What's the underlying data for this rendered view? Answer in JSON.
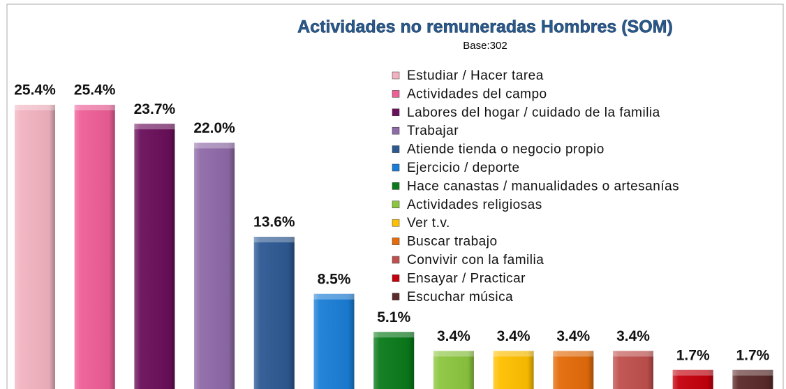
{
  "chart_data": {
    "type": "bar",
    "title": "Actividades no remuneradas Hombres (SOM)",
    "subtitle": "Base:302",
    "categories": [
      "Estudiar / Hacer tarea",
      "Actividades del campo",
      "Labores del hogar / cuidado de la familia",
      "Trabajar",
      "Atiende tienda o negocio propio",
      "Ejercicio / deporte",
      "Hace canastas / manualidades  o artesanías",
      "Actividades religiosas",
      "Ver t.v.",
      "Buscar trabajo",
      "Convivir con la familia",
      "Ensayar / Practicar",
      "Escuchar música"
    ],
    "values": [
      25.4,
      25.4,
      23.7,
      22.0,
      13.6,
      8.5,
      5.1,
      3.4,
      3.4,
      3.4,
      3.4,
      1.7,
      1.7
    ],
    "value_labels": [
      "25.4%",
      "25.4%",
      "23.7%",
      "22.0%",
      "13.6%",
      "8.5%",
      "5.1%",
      "3.4%",
      "3.4%",
      "3.4%",
      "3.4%",
      "1.7%",
      "1.7%"
    ],
    "colors": [
      "#f2b3c1",
      "#ee5e97",
      "#6a0f5b",
      "#8f6aa8",
      "#2d5993",
      "#1a7ed6",
      "#0a7a1a",
      "#8cc63f",
      "#ffc000",
      "#e46c0a",
      "#c0504d",
      "#c4000b",
      "#5b2a2a"
    ],
    "legend": "top-right"
  }
}
